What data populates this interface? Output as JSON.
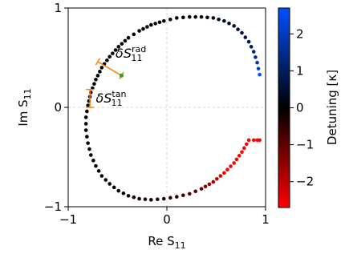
{
  "chart_data": {
    "type": "scatter",
    "title": "",
    "xlabel": "Re S",
    "xlabel_sub": "11",
    "ylabel": "Im S",
    "ylabel_sub": "11",
    "xlim": [
      -1,
      1
    ],
    "ylim": [
      -1,
      1
    ],
    "x_ticks": [
      -1,
      0,
      1
    ],
    "y_ticks": [
      -1,
      0,
      1
    ],
    "x_tick_labels": [
      "−1",
      "0",
      "1"
    ],
    "y_tick_labels": [
      "−1",
      "0",
      "1"
    ],
    "grid": "dashed lines at x = 0 and y = 0",
    "series": [
      {
        "x": [
          0.94,
          0.915,
          0.88,
          0.83,
          0.76,
          0.68,
          0.58,
          0.47,
          0.35,
          0.23,
          0.1,
          -0.03,
          -0.16,
          -0.28,
          -0.39,
          -0.49,
          -0.58,
          -0.66,
          -0.72,
          -0.77,
          -0.8,
          -0.82,
          -0.82,
          -0.8,
          -0.77,
          -0.72,
          -0.66,
          -0.58,
          -0.49,
          -0.39,
          -0.28,
          -0.16,
          -0.03,
          0.1,
          0.23,
          0.35,
          0.47,
          0.58,
          0.68,
          0.76,
          0.83,
          0.88,
          0.915,
          0.94
        ],
        "y": [
          0.33,
          0.45,
          0.56,
          0.66,
          0.75,
          0.82,
          0.87,
          0.9,
          0.91,
          0.91,
          0.9,
          0.87,
          0.83,
          0.77,
          0.7,
          0.61,
          0.51,
          0.4,
          0.28,
          0.15,
          0.02,
          -0.1,
          -0.23,
          -0.36,
          -0.48,
          -0.59,
          -0.69,
          -0.77,
          -0.84,
          -0.89,
          -0.92,
          -0.93,
          -0.92,
          -0.9,
          -0.87,
          -0.82,
          -0.75,
          -0.66,
          -0.56,
          -0.45,
          -0.33,
          -0.33,
          -0.33,
          -0.33
        ],
        "detuning": [
          2.7,
          1.8,
          1.2,
          0.85,
          0.6,
          0.45,
          0.33,
          0.24,
          0.17,
          0.12,
          0.08,
          0.05,
          0.035,
          0.02,
          0.01,
          0.005,
          0.0,
          0.0,
          0.0,
          0.0,
          0.0,
          0.0,
          -0.005,
          -0.01,
          -0.02,
          -0.035,
          -0.05,
          -0.08,
          -0.12,
          -0.17,
          -0.24,
          -0.33,
          -0.45,
          -0.6,
          -0.85,
          -1.2,
          -1.8,
          -2.7,
          -2.7,
          -2.7,
          -2.7,
          -2.7,
          -2.7,
          -2.7
        ]
      }
    ],
    "colorbar": {
      "label": "Detuning [κ]",
      "range": [
        -2.7,
        2.7
      ],
      "ticks": [
        -2,
        -1,
        0,
        1,
        2
      ],
      "tick_labels": [
        "−2",
        "−1",
        "0",
        "1",
        "2"
      ],
      "colors": [
        "#ff0000",
        "#000000",
        "#0050ff"
      ]
    },
    "annotations": [
      {
        "id": "rad",
        "base": "δS",
        "sub": "11",
        "sup": "rad",
        "from": [
          -0.7,
          0.46
        ],
        "to": [
          -0.46,
          0.32
        ],
        "marker_color": "#2ca02c",
        "bracket_color": "#ff7f0e"
      },
      {
        "id": "tan",
        "base": "δS",
        "sub": "11",
        "sup": "tan",
        "from": [
          -0.78,
          0.18
        ],
        "to": [
          -0.78,
          0.0
        ],
        "bracket_color": "#ff7f0e"
      }
    ]
  }
}
